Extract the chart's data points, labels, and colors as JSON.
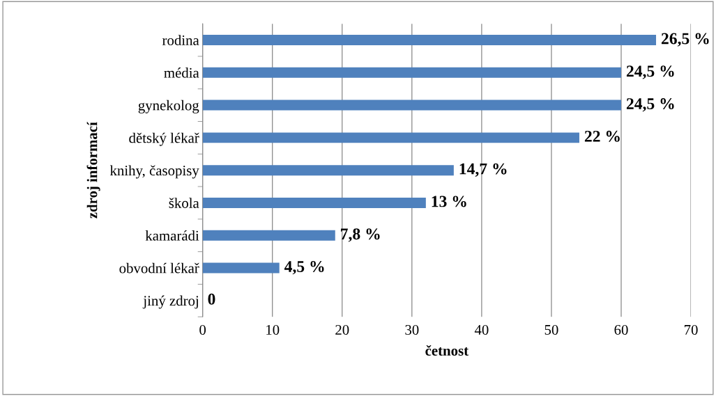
{
  "chart_data": {
    "type": "bar",
    "orientation": "horizontal",
    "xlabel": "četnost",
    "ylabel": "zdroj informací",
    "categories": [
      "rodina",
      "média",
      "gynekolog",
      "dětský lékař",
      "knihy, časopisy",
      "škola",
      "kamarádi",
      "obvodní lékař",
      "jiný zdroj"
    ],
    "values": [
      65,
      60,
      60,
      54,
      36,
      32,
      19,
      11,
      0
    ],
    "annotations": [
      {
        "text": "26,5 %",
        "x": 65,
        "y": "rodina"
      },
      {
        "text": "24,5 %",
        "x": 60,
        "y": "média"
      },
      {
        "text": "24,5 %",
        "x": 60,
        "y": "gynekolog"
      },
      {
        "text": "22 %",
        "x": 54,
        "y": "dětský lékař"
      },
      {
        "text": "14,7 %",
        "x": 36,
        "y": "knihy, časopisy"
      },
      {
        "text": "13 %",
        "x": 32,
        "y": "škola"
      },
      {
        "text": "7,8 %",
        "x": 19,
        "y": "kamarádi"
      },
      {
        "text": "4,5 %",
        "x": 11,
        "y": "obvodní lékař"
      },
      {
        "text": "0",
        "x": 0,
        "y": "jiný zdroj"
      }
    ],
    "color": "#4f81bd",
    "xlim": [
      0,
      70
    ],
    "xticks": [
      0,
      10,
      20,
      30,
      40,
      50,
      60,
      70
    ],
    "grid": "x"
  }
}
